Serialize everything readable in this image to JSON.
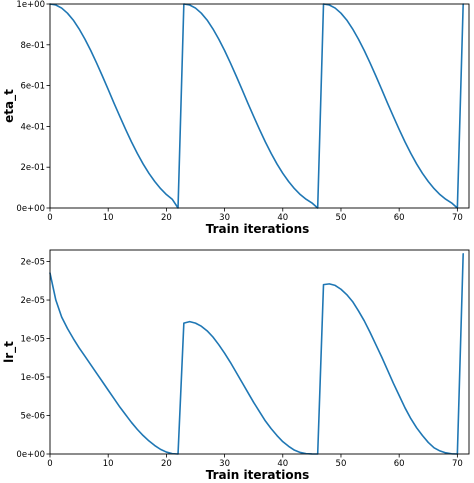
{
  "colors": {
    "line": "#1f77b4",
    "axes": "#000000",
    "background": "#ffffff"
  },
  "chart_data": [
    {
      "type": "line",
      "xlabel": "Train iterations",
      "ylabel": "eta_t",
      "xlim": [
        0,
        72
      ],
      "ylim": [
        0,
        1.0
      ],
      "x_ticks": [
        0,
        10,
        20,
        30,
        40,
        50,
        60,
        70
      ],
      "x_tick_labels": [
        "0",
        "10",
        "20",
        "30",
        "40",
        "50",
        "60",
        "70"
      ],
      "y_ticks": [
        0,
        0.2,
        0.4,
        0.6,
        0.8,
        1.0
      ],
      "y_tick_labels": [
        "0e+00",
        "2e-01",
        "4e-01",
        "6e-01",
        "8e-01",
        "1e+00"
      ],
      "grid": false,
      "series": [
        {
          "x": [
            0,
            1,
            2,
            3,
            4,
            5,
            6,
            7,
            8,
            9,
            10,
            11,
            12,
            13,
            14,
            15,
            16,
            17,
            18,
            19,
            20,
            21,
            22,
            23,
            24,
            25,
            26,
            27,
            28,
            29,
            30,
            31,
            32,
            33,
            34,
            35,
            36,
            37,
            38,
            39,
            40,
            41,
            42,
            43,
            44,
            45,
            46,
            47,
            48,
            49,
            50,
            51,
            52,
            53,
            54,
            55,
            56,
            57,
            58,
            59,
            60,
            61,
            62,
            63,
            64,
            65,
            66,
            67,
            68,
            69,
            70,
            71
          ],
          "values": [
            1.0,
            0.995,
            0.98,
            0.955,
            0.921,
            0.878,
            0.828,
            0.772,
            0.711,
            0.647,
            0.581,
            0.514,
            0.449,
            0.385,
            0.324,
            0.268,
            0.216,
            0.17,
            0.13,
            0.095,
            0.066,
            0.043,
            0.0,
            1.0,
            0.995,
            0.98,
            0.955,
            0.921,
            0.878,
            0.828,
            0.772,
            0.711,
            0.647,
            0.581,
            0.514,
            0.449,
            0.385,
            0.324,
            0.268,
            0.216,
            0.17,
            0.13,
            0.095,
            0.066,
            0.043,
            0.025,
            0.0,
            1.0,
            0.995,
            0.98,
            0.955,
            0.921,
            0.878,
            0.828,
            0.772,
            0.711,
            0.647,
            0.581,
            0.514,
            0.449,
            0.385,
            0.324,
            0.268,
            0.216,
            0.17,
            0.13,
            0.095,
            0.066,
            0.043,
            0.025,
            0.0,
            1.0
          ]
        }
      ]
    },
    {
      "type": "line",
      "xlabel": "Train iterations",
      "ylabel": "lr_t",
      "xlim": [
        0,
        72
      ],
      "ylim": [
        0,
        2.65e-05
      ],
      "x_ticks": [
        0,
        10,
        20,
        30,
        40,
        50,
        60,
        70
      ],
      "x_tick_labels": [
        "0",
        "10",
        "20",
        "30",
        "40",
        "50",
        "60",
        "70"
      ],
      "y_ticks": [
        0,
        5e-06,
        1e-05,
        1.5e-05,
        2e-05,
        2.5e-05
      ],
      "y_tick_labels": [
        "0e+00",
        "5e-06",
        "1e-05",
        "1e-05",
        "2e-05",
        "2e-05"
      ],
      "grid": false,
      "series": [
        {
          "x": [
            0,
            1,
            2,
            3,
            4,
            5,
            6,
            7,
            8,
            9,
            10,
            11,
            12,
            13,
            14,
            15,
            16,
            17,
            18,
            19,
            20,
            21,
            22,
            23,
            24,
            25,
            26,
            27,
            28,
            29,
            30,
            31,
            32,
            33,
            34,
            35,
            36,
            37,
            38,
            39,
            40,
            41,
            42,
            43,
            44,
            45,
            46,
            47,
            48,
            49,
            50,
            51,
            52,
            53,
            54,
            55,
            56,
            57,
            58,
            59,
            60,
            61,
            62,
            63,
            64,
            65,
            66,
            67,
            68,
            69,
            70,
            71
          ],
          "values": [
            2.35e-05,
            2e-05,
            1.78e-05,
            1.63e-05,
            1.5e-05,
            1.38e-05,
            1.27e-05,
            1.16e-05,
            1.05e-05,
            9.4e-06,
            8.3e-06,
            7.2e-06,
            6.1e-06,
            5.1e-06,
            4.1e-06,
            3.2e-06,
            2.4e-06,
            1.7e-06,
            1.1e-06,
            6e-07,
            2.5e-07,
            5e-08,
            0.0,
            1.7e-05,
            1.72e-05,
            1.7e-05,
            1.66e-05,
            1.6e-05,
            1.52e-05,
            1.42e-05,
            1.31e-05,
            1.19e-05,
            1.06e-05,
            9.3e-06,
            8e-06,
            6.7e-06,
            5.5e-06,
            4.3e-06,
            3.3e-06,
            2.4e-06,
            1.6e-06,
            1e-06,
            5e-07,
            2e-07,
            5e-08,
            1e-08,
            0.0,
            2.2e-05,
            2.21e-05,
            2.19e-05,
            2.14e-05,
            2.07e-05,
            1.98e-05,
            1.86e-05,
            1.73e-05,
            1.58e-05,
            1.42e-05,
            1.26e-05,
            1.09e-05,
            9.2e-06,
            7.6e-06,
            6e-06,
            4.6e-06,
            3.4e-06,
            2.4e-06,
            1.5e-06,
            8e-07,
            4e-07,
            1.5e-07,
            3e-08,
            0.0,
            2.6e-05
          ]
        }
      ]
    }
  ]
}
